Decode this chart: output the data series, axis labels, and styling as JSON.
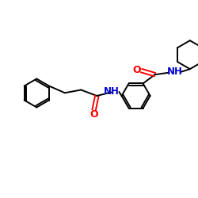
{
  "background_color": "#ffffff",
  "bond_color": "#000000",
  "oxygen_color": "#ff0000",
  "nitrogen_color": "#0000cc",
  "line_width": 1.4,
  "font_size": 8.5,
  "figsize": [
    2.5,
    2.5
  ],
  "dpi": 100,
  "xlim": [
    0,
    10
  ],
  "ylim": [
    0,
    10
  ]
}
